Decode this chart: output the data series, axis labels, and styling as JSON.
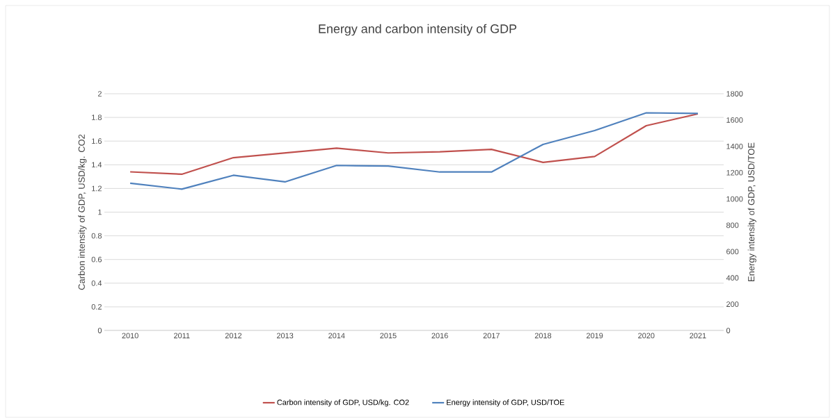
{
  "chart_data": {
    "type": "line",
    "title": "Energy and carbon intensity of GDP",
    "ylabel": "Carbon intensity of GDP, USD/kg. CO2",
    "y2label": "Energy intensity of GDP, USD/TOE",
    "categories": [
      "2010",
      "2011",
      "2012",
      "2013",
      "2014",
      "2015",
      "2016",
      "2017",
      "2018",
      "2019",
      "2020",
      "2021"
    ],
    "series": [
      {
        "name": "Carbon intensity of GDP, USD/kg. CO2",
        "color": "#c0504d",
        "values": [
          1.34,
          1.32,
          1.46,
          1.5,
          1.54,
          1.5,
          1.51,
          1.53,
          1.42,
          1.47,
          1.73,
          1.83
        ]
      },
      {
        "name": "Energy intensity of GDP, USD/TOE",
        "color": "#4f81bd",
        "axis": "y2",
        "values": [
          1120,
          1075,
          1180,
          1130,
          1255,
          1250,
          1205,
          1205,
          1415,
          1520,
          1655,
          1650
        ]
      }
    ],
    "ylim": [
      0,
      2
    ],
    "yticks": [
      0,
      0.2,
      0.4,
      0.6,
      0.8,
      1,
      1.2,
      1.4,
      1.6,
      1.8,
      2
    ],
    "y2lim": [
      0,
      1800
    ],
    "y2ticks": [
      0,
      200,
      400,
      600,
      800,
      1000,
      1200,
      1400,
      1600,
      1800
    ],
    "grid": "y",
    "legend": "bottom",
    "marker": "none",
    "line_style": "solid"
  }
}
